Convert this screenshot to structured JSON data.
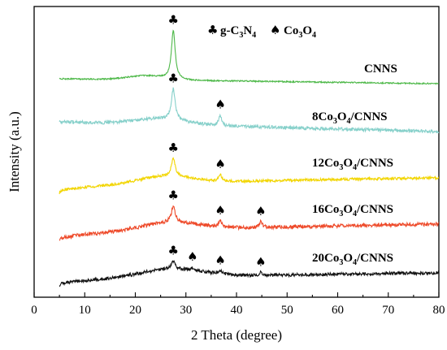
{
  "chart_data": {
    "type": "line",
    "title": "",
    "xlabel": "2 Theta (degree)",
    "ylabel": "Intensity (a.u.)",
    "xlim": [
      0,
      80
    ],
    "x_ticks": [
      "0",
      "10",
      "20",
      "30",
      "40",
      "50",
      "60",
      "70",
      "80"
    ],
    "y_ticks": [],
    "grid": false,
    "legend": {
      "placement": "top",
      "entries": [
        {
          "symbol": "club",
          "glyph": "♣",
          "label": "g-C3N4"
        },
        {
          "symbol": "spade",
          "glyph": "♠",
          "label": "Co3O4"
        }
      ]
    },
    "series": [
      {
        "label_parts": [
          "CNNS"
        ],
        "color": "#4db848",
        "peaks": [
          {
            "x": 27.5,
            "phase": "club"
          }
        ]
      },
      {
        "label_parts": [
          "8Co",
          "3",
          "O",
          "4",
          "/CNNS"
        ],
        "color": "#86d0ca",
        "peaks": [
          {
            "x": 27.5,
            "phase": "club"
          },
          {
            "x": 36.8,
            "phase": "spade"
          }
        ]
      },
      {
        "label_parts": [
          "12Co",
          "3",
          "O",
          "4",
          "/CNNS"
        ],
        "color": "#f2d500",
        "peaks": [
          {
            "x": 27.5,
            "phase": "club"
          },
          {
            "x": 36.8,
            "phase": "spade"
          }
        ]
      },
      {
        "label_parts": [
          "16Co",
          "3",
          "O",
          "4",
          "/CNNS"
        ],
        "color": "#ee4a2a",
        "peaks": [
          {
            "x": 27.5,
            "phase": "club"
          },
          {
            "x": 36.8,
            "phase": "spade"
          },
          {
            "x": 44.8,
            "phase": "spade"
          }
        ]
      },
      {
        "label_parts": [
          "20Co",
          "3",
          "O",
          "4",
          "/CNNS"
        ],
        "color": "#111111",
        "peaks": [
          {
            "x": 27.5,
            "phase": "club"
          },
          {
            "x": 31.3,
            "phase": "spade"
          },
          {
            "x": 36.8,
            "phase": "spade"
          },
          {
            "x": 44.8,
            "phase": "spade"
          }
        ]
      }
    ]
  }
}
